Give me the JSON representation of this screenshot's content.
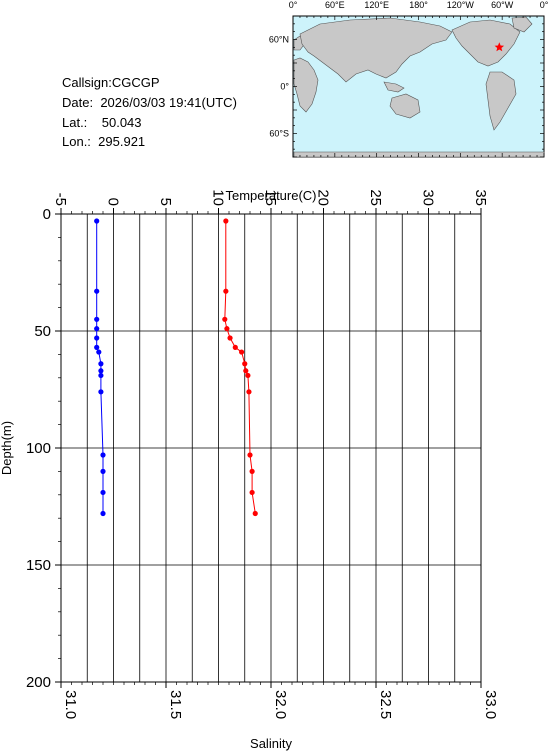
{
  "station": {
    "callsign_label": "Callsign:",
    "callsign": "CGCGP",
    "date_label": "Date:",
    "date": "2026/03/03 19:41(UTC)",
    "lat_label": "Lat.:",
    "lat": "50.043",
    "lon_label": "Lon.:",
    "lon": "295.921"
  },
  "map": {
    "top_labels": [
      "0°",
      "60°E",
      "120°E",
      "180°",
      "120°W",
      "60°W",
      "0°"
    ],
    "left_labels": [
      "60°N",
      "0°",
      "60°S"
    ],
    "ocean_color": "#cdf3fb",
    "land_color": "#c8c8c8",
    "marker_color": "#ff0000",
    "marker_lat": 50.043,
    "marker_lon": 295.921
  },
  "chart_data": {
    "type": "line",
    "title": "",
    "ylabel": "Depth(m)",
    "ylim": [
      0,
      200
    ],
    "y_inverted": true,
    "y_ticks": [
      "0",
      "50",
      "100",
      "150",
      "200"
    ],
    "top_axis": {
      "label": "Temperature(C)",
      "range": [
        -5,
        35
      ],
      "ticks": [
        "-5",
        "0",
        "5",
        "10",
        "15",
        "20",
        "25",
        "30",
        "35"
      ]
    },
    "bottom_axis": {
      "label": "Salinity",
      "range": [
        31.0,
        33.0
      ],
      "ticks": [
        "31.0",
        "31.5",
        "32.0",
        "32.5",
        "33.0"
      ]
    },
    "grid": true,
    "series": [
      {
        "axis": "bottom",
        "color": "#0000ff",
        "points": [
          {
            "x": 31.17,
            "y": 3
          },
          {
            "x": 31.17,
            "y": 33
          },
          {
            "x": 31.17,
            "y": 45
          },
          {
            "x": 31.17,
            "y": 49
          },
          {
            "x": 31.17,
            "y": 53
          },
          {
            "x": 31.17,
            "y": 57
          },
          {
            "x": 31.18,
            "y": 59
          },
          {
            "x": 31.19,
            "y": 64
          },
          {
            "x": 31.19,
            "y": 67
          },
          {
            "x": 31.19,
            "y": 69
          },
          {
            "x": 31.19,
            "y": 76
          },
          {
            "x": 31.2,
            "y": 103
          },
          {
            "x": 31.2,
            "y": 110
          },
          {
            "x": 31.2,
            "y": 119
          },
          {
            "x": 31.2,
            "y": 128
          }
        ]
      },
      {
        "axis": "top",
        "color": "#ff0000",
        "points": [
          {
            "x": 10.7,
            "y": 3
          },
          {
            "x": 10.7,
            "y": 33
          },
          {
            "x": 10.6,
            "y": 45
          },
          {
            "x": 10.8,
            "y": 49
          },
          {
            "x": 11.1,
            "y": 53
          },
          {
            "x": 11.6,
            "y": 57
          },
          {
            "x": 12.2,
            "y": 59
          },
          {
            "x": 12.5,
            "y": 64
          },
          {
            "x": 12.6,
            "y": 67
          },
          {
            "x": 12.8,
            "y": 69
          },
          {
            "x": 12.9,
            "y": 76
          },
          {
            "x": 13.0,
            "y": 103
          },
          {
            "x": 13.2,
            "y": 110
          },
          {
            "x": 13.2,
            "y": 119
          },
          {
            "x": 13.5,
            "y": 128
          }
        ]
      }
    ]
  }
}
